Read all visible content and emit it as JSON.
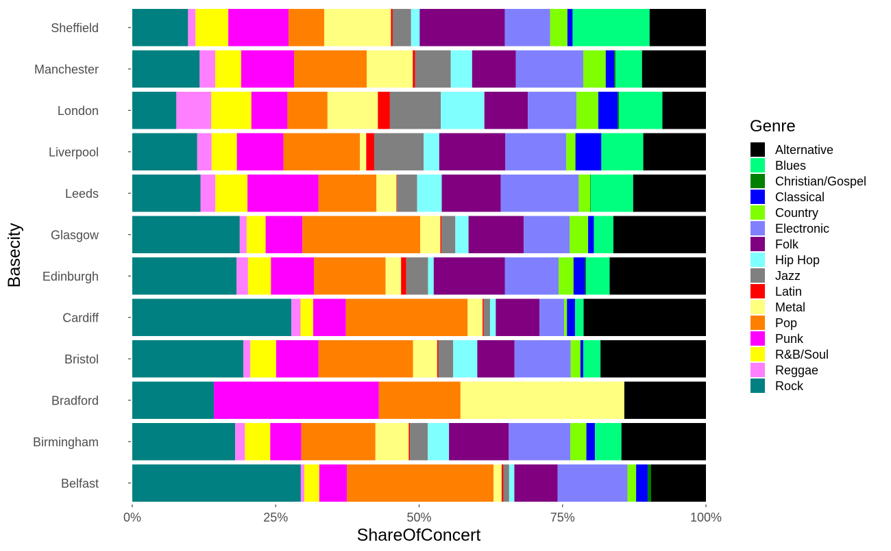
{
  "chart_data": {
    "type": "bar",
    "orientation": "horizontal",
    "stacked": true,
    "xlabel": "ShareOfConcert",
    "ylabel": "Basecity",
    "xlim": [
      0,
      1
    ],
    "x_ticks": [
      "0%",
      "25%",
      "50%",
      "75%",
      "100%"
    ],
    "grid": false,
    "legend_title": "Genre",
    "legend_position": "right",
    "categories": [
      "Sheffield",
      "Manchester",
      "London",
      "Liverpool",
      "Leeds",
      "Glasgow",
      "Edinburgh",
      "Cardiff",
      "Bristol",
      "Bradford",
      "Birmingham",
      "Belfast"
    ],
    "stack_order": [
      "Rock",
      "Reggae",
      "R&B/Soul",
      "Punk",
      "Pop",
      "Metal",
      "Latin",
      "Jazz",
      "Hip Hop",
      "Folk",
      "Electronic",
      "Country",
      "Classical",
      "Christian/Gospel",
      "Blues",
      "Alternative"
    ],
    "legend_order": [
      "Alternative",
      "Blues",
      "Christian/Gospel",
      "Classical",
      "Country",
      "Electronic",
      "Folk",
      "Hip Hop",
      "Jazz",
      "Latin",
      "Metal",
      "Pop",
      "Punk",
      "R&B/Soul",
      "Reggae",
      "Rock"
    ],
    "colors": {
      "Alternative": "#000000",
      "Blues": "#00FF7F",
      "Christian/Gospel": "#008000",
      "Classical": "#0000FF",
      "Country": "#7FFF00",
      "Electronic": "#8080FF",
      "Folk": "#800080",
      "Hip Hop": "#80FFFF",
      "Jazz": "#808080",
      "Latin": "#FF0000",
      "Metal": "#FFFF80",
      "Pop": "#FF8000",
      "Punk": "#FF00FF",
      "R&B/Soul": "#FFFF00",
      "Reggae": "#FF80FF",
      "Rock": "#008080"
    },
    "series": [
      {
        "name": "Rock",
        "values": [
          0.097,
          0.117,
          0.077,
          0.113,
          0.119,
          0.187,
          0.182,
          0.277,
          0.194,
          0.142,
          0.179,
          0.292
        ]
      },
      {
        "name": "Reggae",
        "values": [
          0.013,
          0.027,
          0.061,
          0.025,
          0.026,
          0.012,
          0.02,
          0.016,
          0.012,
          0.0,
          0.017,
          0.006
        ]
      },
      {
        "name": "R&B/Soul",
        "values": [
          0.057,
          0.045,
          0.07,
          0.044,
          0.056,
          0.033,
          0.04,
          0.022,
          0.045,
          0.0,
          0.044,
          0.026
        ]
      },
      {
        "name": "Punk",
        "values": [
          0.105,
          0.092,
          0.063,
          0.081,
          0.124,
          0.064,
          0.075,
          0.057,
          0.074,
          0.287,
          0.054,
          0.048
        ]
      },
      {
        "name": "Pop",
        "values": [
          0.062,
          0.126,
          0.07,
          0.133,
          0.101,
          0.205,
          0.125,
          0.212,
          0.165,
          0.142,
          0.129,
          0.254
        ]
      },
      {
        "name": "Metal",
        "values": [
          0.116,
          0.08,
          0.088,
          0.011,
          0.035,
          0.035,
          0.027,
          0.026,
          0.042,
          0.285,
          0.058,
          0.014
        ]
      },
      {
        "name": "Latin",
        "values": [
          0.003,
          0.004,
          0.021,
          0.014,
          0.001,
          0.002,
          0.009,
          0.002,
          0.002,
          0.0,
          0.002,
          0.003
        ]
      },
      {
        "name": "Jazz",
        "values": [
          0.032,
          0.062,
          0.089,
          0.086,
          0.035,
          0.024,
          0.038,
          0.011,
          0.026,
          0.0,
          0.031,
          0.01
        ]
      },
      {
        "name": "Hip Hop",
        "values": [
          0.015,
          0.037,
          0.076,
          0.027,
          0.043,
          0.023,
          0.01,
          0.01,
          0.042,
          0.0,
          0.037,
          0.009
        ]
      },
      {
        "name": "Folk",
        "values": [
          0.148,
          0.076,
          0.076,
          0.115,
          0.103,
          0.096,
          0.124,
          0.076,
          0.065,
          0.0,
          0.104,
          0.075
        ]
      },
      {
        "name": "Electronic",
        "values": [
          0.079,
          0.117,
          0.085,
          0.106,
          0.136,
          0.08,
          0.094,
          0.043,
          0.098,
          0.0,
          0.107,
          0.121
        ]
      },
      {
        "name": "Country",
        "values": [
          0.03,
          0.039,
          0.038,
          0.016,
          0.02,
          0.032,
          0.026,
          0.005,
          0.017,
          0.0,
          0.028,
          0.015
        ]
      },
      {
        "name": "Classical",
        "values": [
          0.009,
          0.015,
          0.034,
          0.045,
          0.0,
          0.01,
          0.02,
          0.014,
          0.005,
          0.0,
          0.015,
          0.02
        ]
      },
      {
        "name": "Christian/Gospel",
        "values": [
          0.0,
          0.002,
          0.002,
          0.0,
          0.001,
          0.0,
          0.002,
          0.0,
          0.0,
          0.0,
          0.0,
          0.006
        ]
      },
      {
        "name": "Blues",
        "values": [
          0.134,
          0.046,
          0.076,
          0.073,
          0.074,
          0.034,
          0.041,
          0.015,
          0.03,
          0.0,
          0.046,
          0.0
        ]
      },
      {
        "name": "Alternative",
        "values": [
          0.098,
          0.111,
          0.076,
          0.109,
          0.127,
          0.161,
          0.168,
          0.213,
          0.184,
          0.142,
          0.147,
          0.095
        ]
      }
    ]
  }
}
